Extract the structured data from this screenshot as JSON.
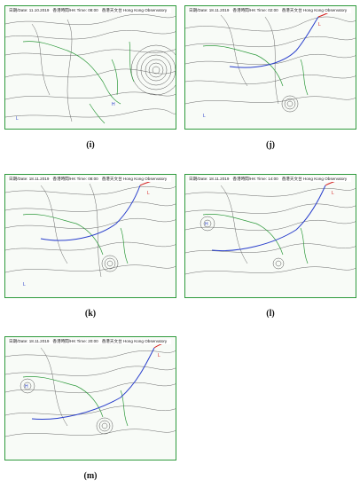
{
  "figure": {
    "panels": [
      {
        "id": "i",
        "caption": "(i)",
        "date_label": "日期/Date: 11.10.2019",
        "time_label": "香港時間/HK Time: 08:00",
        "observatory": "香港天文台 Hong Kong Observatory",
        "has_front": false
      },
      {
        "id": "j",
        "caption": "(j)",
        "date_label": "日期/Date: 18.11.2019",
        "time_label": "香港時間/HK Time: 02:00",
        "observatory": "香港天文台 Hong Kong Observatory",
        "has_front": true
      },
      {
        "id": "k",
        "caption": "(k)",
        "date_label": "日期/Date: 18.11.2019",
        "time_label": "香港時間/HK Time: 08:00",
        "observatory": "香港天文台 Hong Kong Observatory",
        "has_front": true
      },
      {
        "id": "l",
        "caption": "(l)",
        "date_label": "日期/Date: 18.11.2019",
        "time_label": "香港時間/HK Time: 14:00",
        "observatory": "香港天文台 Hong Kong Observatory",
        "has_front": true
      },
      {
        "id": "m",
        "caption": "(m)",
        "date_label": "日期/Date: 18.11.2019",
        "time_label": "香港時間/HK Time: 20:00",
        "observatory": "香港天文台 Hong Kong Observatory",
        "has_front": true
      }
    ]
  },
  "colors": {
    "frame": "#2e9a3c",
    "land": "#2e9a3c",
    "isobar": "#555555",
    "front_blue": "#2a3fcc",
    "front_red": "#d42020",
    "ocean": "#f8fbf7"
  }
}
